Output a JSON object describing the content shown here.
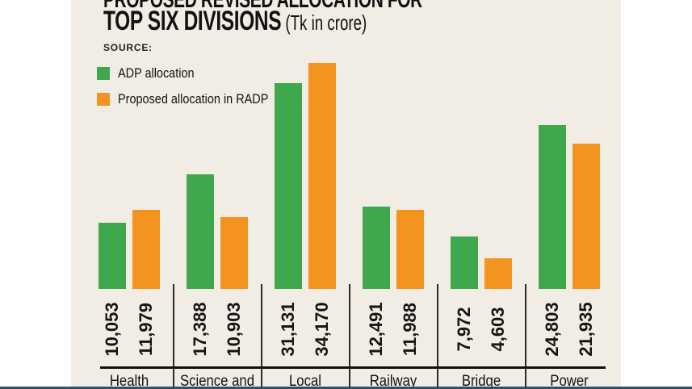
{
  "page": {
    "background": "#FFFFFF",
    "panel_bg": "#F2EDE4",
    "bottom_rule_color": "#31506B"
  },
  "header": {
    "title_line1": "PROPOSED REVISED ALLOCATION FOR",
    "title_line2": "TOP SIX DIVISIONS",
    "title_unit": "(Tk in crore)",
    "source_label": "SOURCE:"
  },
  "legend": {
    "items": [
      {
        "label": "ADP allocation",
        "color": "#3FA84D"
      },
      {
        "label": "Proposed allocation in RADP",
        "color": "#F2941F"
      }
    ]
  },
  "chart_data": {
    "type": "bar",
    "title": "PROPOSED REVISED ALLOCATION FOR TOP SIX DIVISIONS",
    "unit": "Tk in crore",
    "categories": [
      "Health",
      "Science and",
      "Local",
      "Railway",
      "Bridge",
      "Power"
    ],
    "series": [
      {
        "name": "ADP allocation",
        "color": "#3FA84D",
        "values": [
          10053,
          17388,
          31131,
          12491,
          7972,
          24803
        ]
      },
      {
        "name": "Proposed allocation in RADP",
        "color": "#F2941F",
        "values": [
          11979,
          10903,
          34170,
          11988,
          4603,
          21935
        ]
      }
    ],
    "ylim": [
      0,
      34170
    ],
    "grid": false,
    "legend_position": "top-left",
    "value_label_rotation": -90
  }
}
